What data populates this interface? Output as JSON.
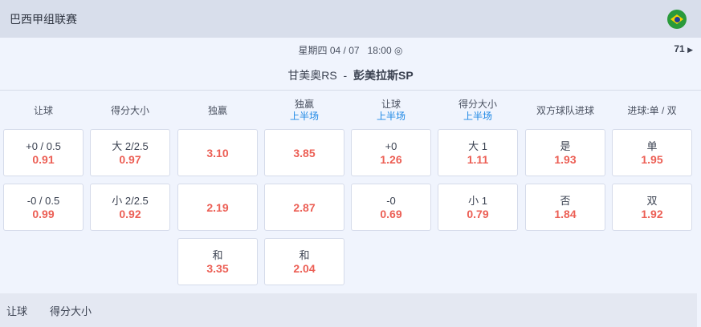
{
  "header": {
    "league": "巴西甲组联赛",
    "flag_icon": "brazil-flag-icon"
  },
  "match": {
    "date": "星期四 04 / 07",
    "time": "18:00",
    "count": "71",
    "home": "甘美奥RS",
    "separator": "-",
    "away": "彭美拉斯SP"
  },
  "columns": [
    {
      "title": "让球",
      "sub": ""
    },
    {
      "title": "得分大小",
      "sub": ""
    },
    {
      "title": "独赢",
      "sub": ""
    },
    {
      "title": "独赢",
      "sub": "上半场"
    },
    {
      "title": "让球",
      "sub": "上半场"
    },
    {
      "title": "得分大小",
      "sub": "上半场"
    },
    {
      "title": "双方球队进球",
      "sub": ""
    },
    {
      "title": "进球:单 / 双",
      "sub": ""
    }
  ],
  "rows": [
    [
      {
        "label": "+0 / 0.5",
        "odds": "0.91"
      },
      {
        "label": "大 2/2.5",
        "odds": "0.97"
      },
      {
        "label": "",
        "odds": "3.10"
      },
      {
        "label": "",
        "odds": "3.85"
      },
      {
        "label": "+0",
        "odds": "1.26"
      },
      {
        "label": "大 1",
        "odds": "1.11"
      },
      {
        "label": "是",
        "odds": "1.93"
      },
      {
        "label": "单",
        "odds": "1.95"
      }
    ],
    [
      {
        "label": "-0 / 0.5",
        "odds": "0.99"
      },
      {
        "label": "小 2/2.5",
        "odds": "0.92"
      },
      {
        "label": "",
        "odds": "2.19"
      },
      {
        "label": "",
        "odds": "2.87"
      },
      {
        "label": "-0",
        "odds": "0.69"
      },
      {
        "label": "小 1",
        "odds": "0.79"
      },
      {
        "label": "否",
        "odds": "1.84"
      },
      {
        "label": "双",
        "odds": "1.92"
      }
    ],
    [
      null,
      null,
      {
        "label": "和",
        "odds": "3.35"
      },
      {
        "label": "和",
        "odds": "2.04"
      },
      null,
      null,
      null,
      null
    ]
  ],
  "footer": {
    "tabs": [
      "让球",
      "得分大小"
    ]
  },
  "colors": {
    "odds": "#ec5f55",
    "accent": "#1e88e5",
    "header_bg": "#d8deeb"
  }
}
